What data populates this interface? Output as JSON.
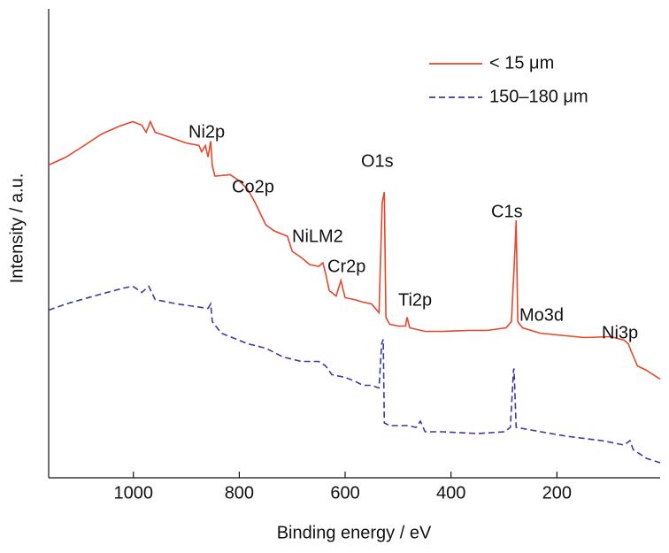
{
  "chart_data": {
    "type": "line",
    "x_label": "Binding energy / eV",
    "y_label": "Intensity / a.u.",
    "xlim": [
      1160,
      5
    ],
    "ylim": [
      -6,
      100
    ],
    "xticks": [
      1000,
      800,
      600,
      400,
      200
    ],
    "legend": "upper right",
    "annotations": [
      "Ni2p",
      "Co2p",
      "NiLM2",
      "Cr2p",
      "O1s",
      "Ti2p",
      "C1s",
      "Mo3d",
      "Ni3p"
    ],
    "series": [
      {
        "name": "< 15 μm",
        "color": "#e8462a",
        "dash": false,
        "x": [
          1160,
          1127,
          1093,
          1060,
          1026,
          1001,
          984,
          976,
          968,
          959,
          934,
          901,
          876,
          871,
          864,
          859,
          854,
          851,
          846,
          817,
          801,
          784,
          770,
          750,
          734,
          709,
          700,
          683,
          667,
          650,
          642,
          637,
          630,
          617,
          608,
          600,
          583,
          566,
          550,
          536,
          530,
          526,
          523,
          516,
          500,
          486,
          483,
          478,
          449,
          416,
          366,
          332,
          296,
          286,
          279,
          277,
          274,
          265,
          232,
          199,
          148,
          98,
          73,
          65,
          60,
          48,
          31,
          5
        ],
        "values": [
          64.7,
          66.5,
          69.1,
          71.7,
          73.5,
          74.5,
          73.7,
          72.1,
          74.5,
          72.1,
          71.1,
          69.7,
          69.1,
          67.7,
          69.1,
          66.5,
          70.1,
          64.5,
          62.2,
          62.5,
          61.2,
          59.2,
          56.2,
          51.2,
          49.8,
          48.6,
          45.2,
          43.8,
          42.2,
          41.8,
          42.6,
          40.2,
          36.3,
          35.1,
          38.6,
          34.7,
          34.3,
          33.7,
          33.3,
          31.3,
          56.2,
          58.6,
          30.3,
          28.7,
          28.3,
          28.3,
          30.3,
          27.9,
          27.1,
          27.1,
          27.3,
          27.3,
          27.9,
          29.3,
          46.2,
          52.2,
          29.3,
          27.9,
          26.7,
          26.3,
          25.7,
          25.9,
          25.1,
          24.3,
          22.7,
          19.3,
          18.3,
          16.3
        ]
      },
      {
        "name": "150–180 μm",
        "color": "#3a3aa8",
        "dash": true,
        "x": [
          1160,
          1127,
          1068,
          1018,
          1001,
          984,
          971,
          959,
          918,
          859,
          854,
          851,
          834,
          784,
          750,
          717,
          683,
          650,
          637,
          625,
          600,
          583,
          566,
          550,
          536,
          531,
          528,
          526,
          516,
          483,
          466,
          458,
          449,
          416,
          349,
          299,
          288,
          282,
          281,
          277,
          249,
          182,
          115,
          73,
          62,
          56,
          31,
          5
        ],
        "values": [
          31.9,
          33.3,
          35.3,
          36.9,
          37.3,
          35.9,
          37.3,
          34.3,
          33.3,
          32.3,
          33.3,
          29.3,
          26.7,
          24.3,
          23.3,
          21.3,
          20.3,
          20.3,
          19.3,
          17.3,
          16.7,
          15.9,
          14.9,
          14.9,
          14.3,
          24.3,
          25.3,
          6.4,
          5.8,
          5.8,
          5.4,
          6.8,
          4.4,
          4.4,
          4.0,
          4.4,
          5.4,
          18.3,
          18.7,
          5.4,
          4.8,
          3.4,
          2.4,
          1.4,
          2.4,
          0.4,
          -1.6,
          -2.6
        ]
      }
    ]
  }
}
